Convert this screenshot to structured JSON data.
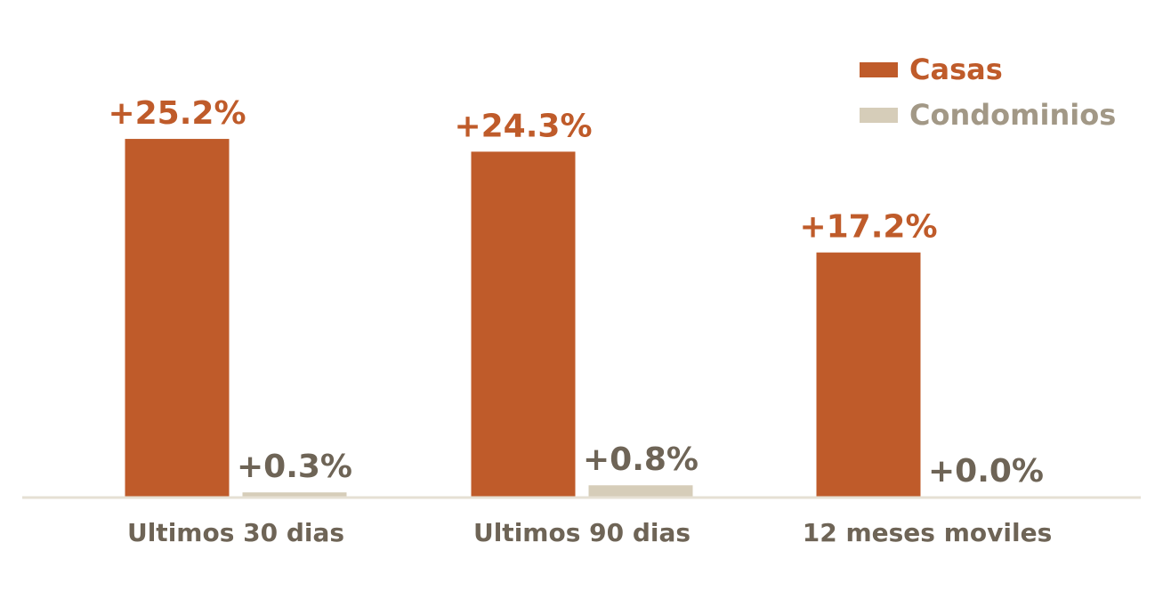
{
  "chart_data": {
    "type": "bar",
    "title": "",
    "xlabel": "",
    "ylabel": "",
    "categories": [
      "Ultimos 30 dias",
      "Ultimos 90 dias",
      "12 meses moviles"
    ],
    "series": [
      {
        "name": "Casas",
        "values": [
          25.2,
          24.3,
          17.2
        ],
        "labels": [
          "+25.2%",
          "+24.3%",
          "+17.2%"
        ],
        "color": "#bf5b2a",
        "label_color": "#bf5b2a"
      },
      {
        "name": "Condominios",
        "values": [
          0.3,
          0.8,
          0.0
        ],
        "labels": [
          "+0.3%",
          "+0.8%",
          "+0.0%"
        ],
        "color": "#d6cdb9",
        "label_color": "#6e6456"
      }
    ],
    "ylim": [
      0,
      31.5
    ],
    "grid": false,
    "legend_position": "top-right",
    "colors": {
      "axis_line": "#e6e0d4",
      "category_text": "#6e6456",
      "legend_casas_text": "#bf5b2a",
      "legend_condominios_text": "#a29886"
    }
  }
}
